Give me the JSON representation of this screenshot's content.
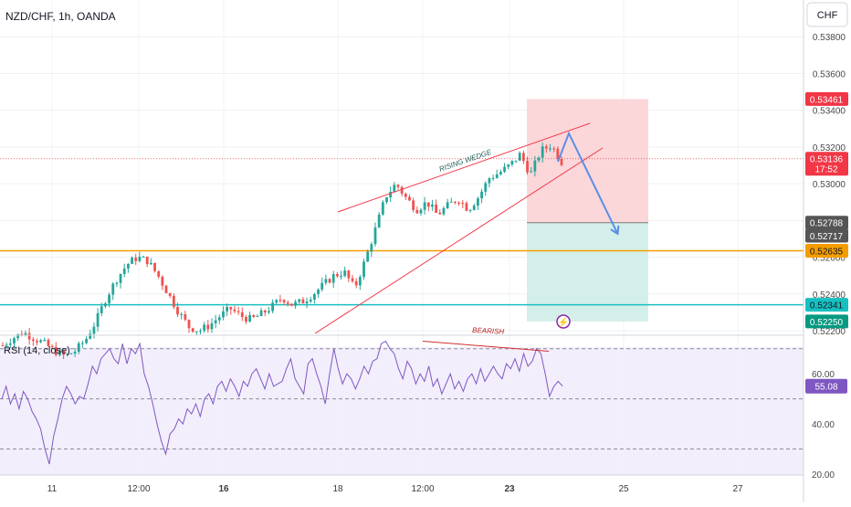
{
  "header": {
    "symbol_label": "NZD/CHF, 1h, OANDA"
  },
  "currency_button": "CHF",
  "rsi_label": "RSI (14, close)",
  "annotations": {
    "wedge": "RISING WEDGE",
    "bearish": "BEARISH"
  },
  "colors": {
    "up": "#26a69a",
    "down": "#ef5350",
    "support": "#f59d00",
    "support2": "#17c0c0",
    "wedge": "#f23645",
    "arrow": "#5b8ee6",
    "rsi": "#7e57c2",
    "stop_zone": "#fbd7da",
    "target_zone": "#d4efe9"
  },
  "chart_data": [
    {
      "type": "candlestick",
      "title": "NZD/CHF, 1h, OANDA",
      "x_ticks": [
        "11",
        "12:00",
        "16",
        "18",
        "12:00",
        "23",
        "25",
        "27"
      ],
      "price_ticks": [
        0.538,
        0.536,
        0.534,
        0.532,
        0.53,
        0.528,
        0.526,
        0.524,
        0.522
      ],
      "price_tick_labels": [
        "0.53800",
        "0.53600",
        "0.53400",
        "0.53200",
        "0.53000",
        "0.52800",
        "0.52600",
        "0.52400",
        "0.52200"
      ],
      "ylim": [
        0.5218,
        0.54
      ],
      "levels": {
        "resistance_support": 0.52635,
        "lower_support": 0.52341
      },
      "position": {
        "stop": 0.53461,
        "entry": 0.52788,
        "target": 0.5225
      },
      "price_labels": [
        {
          "text": "0.53461",
          "value": 0.53461,
          "bg": "#f23645",
          "color": "#ffffff"
        },
        {
          "text": "0.53136",
          "value": 0.53136,
          "bg": "#f23645",
          "color": "#ffffff",
          "sub": "17:52"
        },
        {
          "text": "0.52788",
          "value": 0.52788,
          "bg": "#555555",
          "color": "#ffffff"
        },
        {
          "text": "0.52717",
          "value": 0.52717,
          "bg": "#555555",
          "color": "#ffffff"
        },
        {
          "text": "0.52635",
          "value": 0.52635,
          "bg": "#f59d00",
          "color": "#131722"
        },
        {
          "text": "0.52341",
          "value": 0.52341,
          "bg": "#17c0c0",
          "color": "#131722"
        },
        {
          "text": "0.52250",
          "value": 0.5225,
          "bg": "#089981",
          "color": "#ffffff"
        }
      ],
      "close_trajectory": [
        0.5212,
        0.5216,
        0.5219,
        0.5216,
        0.5213,
        0.5209,
        0.5206,
        0.5209,
        0.5215,
        0.5225,
        0.5238,
        0.5248,
        0.5256,
        0.526,
        0.5258,
        0.525,
        0.524,
        0.523,
        0.5222,
        0.522,
        0.5223,
        0.5228,
        0.5232,
        0.5228,
        0.5226,
        0.5229,
        0.5233,
        0.5238,
        0.5234,
        0.5236,
        0.524,
        0.5245,
        0.525,
        0.5252,
        0.5243,
        0.5258,
        0.5275,
        0.5293,
        0.53,
        0.5292,
        0.5286,
        0.529,
        0.5283,
        0.5288,
        0.5292,
        0.5286,
        0.5293,
        0.5303,
        0.5306,
        0.531,
        0.5316,
        0.5305,
        0.5318,
        0.5321,
        0.5312
      ],
      "close_index_span": [
        0,
        60
      ]
    },
    {
      "type": "line",
      "title": "RSI (14, close)",
      "ylim": [
        20,
        75
      ],
      "y_ticks": [
        60,
        40,
        20
      ],
      "y_tick_labels": [
        "60.00",
        "40.00",
        "20.00"
      ],
      "bands": {
        "upper": 70,
        "middle": 50,
        "lower": 30
      },
      "current_value": 55.08,
      "current_label": "55.08",
      "values": [
        50,
        55,
        48,
        52,
        46,
        53,
        50,
        45,
        42,
        38,
        30,
        24,
        35,
        42,
        50,
        55,
        52,
        48,
        51,
        50,
        56,
        63,
        60,
        66,
        68,
        70,
        66,
        64,
        72,
        64,
        70,
        68,
        72,
        60,
        55,
        48,
        40,
        33,
        28,
        36,
        38,
        42,
        40,
        46,
        44,
        48,
        43,
        50,
        52,
        48,
        55,
        57,
        53,
        58,
        55,
        51,
        57,
        55,
        60,
        62,
        58,
        54,
        60,
        55,
        56,
        57,
        62,
        66,
        58,
        55,
        52,
        64,
        66,
        60,
        55,
        48,
        60,
        70,
        62,
        56,
        60,
        58,
        54,
        58,
        63,
        60,
        65,
        66,
        72,
        73,
        70,
        68,
        62,
        58,
        65,
        62,
        56,
        60,
        57,
        63,
        55,
        58,
        52,
        56,
        60,
        54,
        57,
        53,
        58,
        60,
        56,
        62,
        57,
        60,
        63,
        60,
        58,
        64,
        62,
        66,
        61,
        68,
        63,
        65,
        70,
        68,
        60,
        51,
        55,
        57,
        55.08
      ]
    }
  ]
}
